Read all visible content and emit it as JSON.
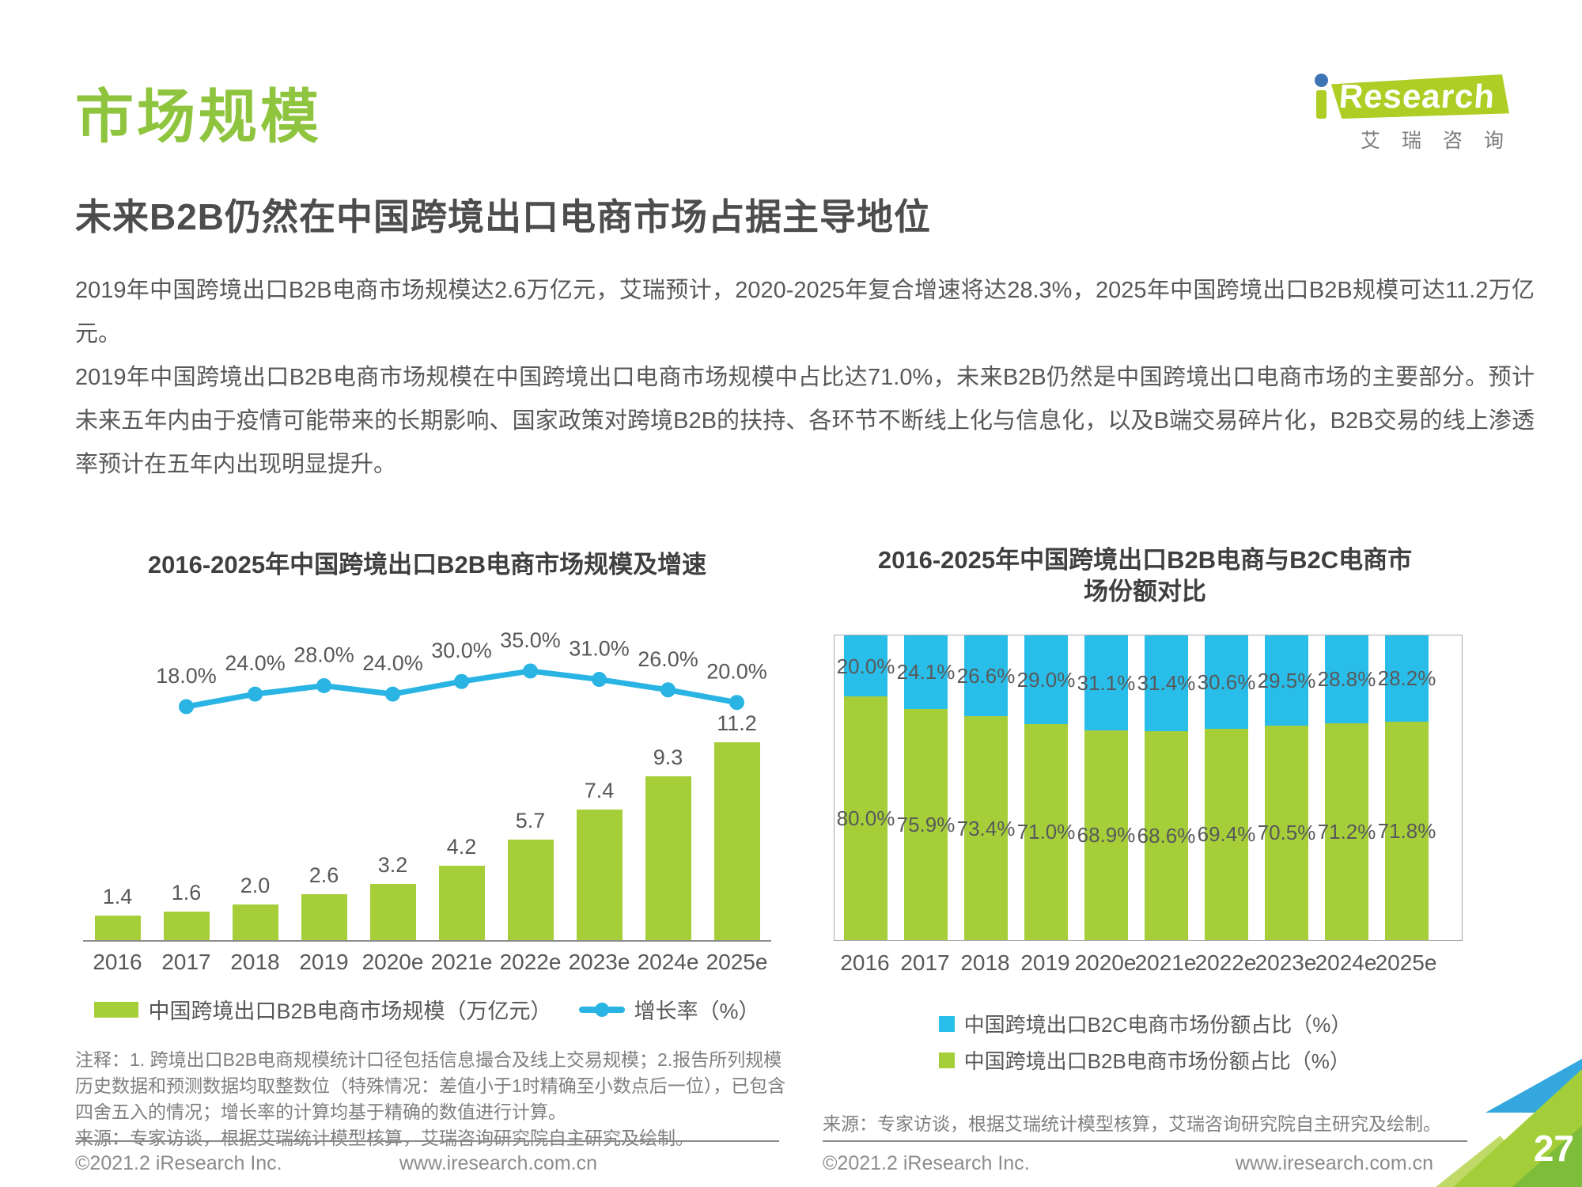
{
  "page": {
    "title": "市场规模",
    "subtitle": "未来B2B仍然在中国跨境出口电商市场占据主导地位",
    "paragraphs": [
      "2019年中国跨境出口B2B电商市场规模达2.6万亿元，艾瑞预计，2020-2025年复合增速将达28.3%，2025年中国跨境出口B2B规模可达11.2万亿元。",
      "2019年中国跨境出口B2B电商市场规模在中国跨境出口电商市场规模中占比达71.0%，未来B2B仍然是中国跨境出口电商市场的主要部分。预计未来五年内由于疫情可能带来的长期影响、国家政策对跨境B2B的扶持、各环节不断线上化与信息化，以及B端交易碎片化，B2B交易的线上渗透率预计在五年内出现明显提升。"
    ],
    "page_number": "27"
  },
  "logo": {
    "i_letter": "i",
    "text": "Research",
    "subtext": "艾瑞咨询"
  },
  "colors": {
    "title_green": "#8fc43f",
    "bar_green": "#a6ce39",
    "line_blue": "#29b4e3",
    "stack_blue": "#29bee9",
    "logo_green": "#aecd25",
    "logo_dot_blue": "#3e74b5",
    "corner_blue": "#34a7df",
    "corner_green": "#a4ce39",
    "corner_green_light": "#c0da67",
    "corner_green_deep": "#5faf3c",
    "label_gray": "#595757"
  },
  "chart_data": [
    {
      "type": "bar+line",
      "title": "2016-2025年中国跨境出口B2B电商市场规模及增速",
      "categories": [
        "2016",
        "2017",
        "2018",
        "2019",
        "2020e",
        "2021e",
        "2022e",
        "2023e",
        "2024e",
        "2025e"
      ],
      "series": [
        {
          "name": "中国跨境出口B2B电商市场规模（万亿元）",
          "type": "bar",
          "values": [
            1.4,
            1.6,
            2.0,
            2.6,
            3.2,
            4.2,
            5.7,
            7.4,
            9.3,
            11.2
          ]
        },
        {
          "name": "增长率（%）",
          "type": "line",
          "values": [
            null,
            18.0,
            24.0,
            28.0,
            24.0,
            30.0,
            35.0,
            31.0,
            26.0,
            20.0
          ]
        }
      ],
      "ylim_bar": [
        0,
        19
      ],
      "grid": false,
      "legend_position": "bottom",
      "note": "注释：1. 跨境出口B2B电商规模统计口径包括信息撮合及线上交易规模；2.报告所列规模历史数据和预测数据均取整数位（特殊情况：差值小于1时精确至小数点后一位），已包含四舍五入的情况；增长率的计算均基于精确的数值进行计算。",
      "source": "来源：专家访谈，根据艾瑞统计模型核算，艾瑞咨询研究院自主研究及绘制。"
    },
    {
      "type": "stacked-bar",
      "title": "2016-2025年中国跨境出口B2B电商与B2C电商市场份额对比",
      "categories": [
        "2016",
        "2017",
        "2018",
        "2019",
        "2020e",
        "2021e",
        "2022e",
        "2023e",
        "2024e",
        "2025e"
      ],
      "series": [
        {
          "name": "中国跨境出口B2C电商市场份额占比（%）",
          "color_key": "stack_blue",
          "values": [
            20.0,
            24.1,
            26.6,
            29.0,
            31.1,
            31.4,
            30.6,
            29.5,
            28.8,
            28.2
          ]
        },
        {
          "name": "中国跨境出口B2B电商市场份额占比（%）",
          "color_key": "bar_green",
          "values": [
            80.0,
            75.9,
            73.4,
            71.0,
            68.9,
            68.6,
            69.4,
            70.5,
            71.2,
            71.8
          ]
        }
      ],
      "ylim": [
        0,
        100
      ],
      "grid": false,
      "legend_position": "bottom",
      "source": "来源：专家访谈，根据艾瑞统计模型核算，艾瑞咨询研究院自主研究及绘制。"
    }
  ],
  "footer": {
    "copyright": "©2021.2 iResearch Inc.",
    "website": "www.iresearch.com.cn"
  }
}
